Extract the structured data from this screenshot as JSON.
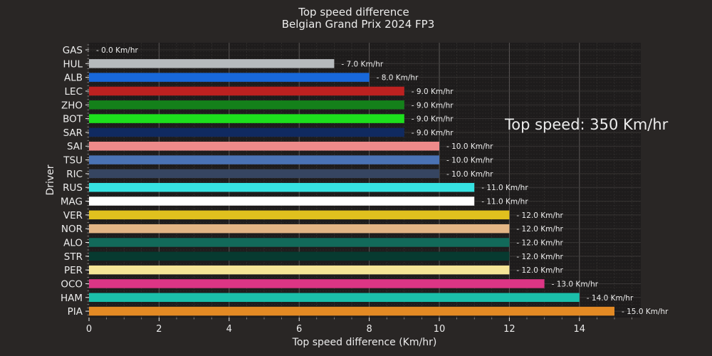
{
  "chart_data": {
    "type": "bar",
    "orientation": "horizontal",
    "title": "Top speed difference",
    "subtitle": "Belgian Grand Prix 2024 FP3",
    "xlabel": "Top speed difference (Km/hr)",
    "ylabel": "Driver",
    "xlim": [
      0,
      15.6
    ],
    "xticks": [
      0,
      2,
      4,
      6,
      8,
      10,
      12,
      14
    ],
    "grid": true,
    "annotation": "Top speed: 350 Km/hr",
    "value_label_format": "- {v} Km/hr",
    "categories": [
      "GAS",
      "HUL",
      "ALB",
      "LEC",
      "ZHO",
      "BOT",
      "SAR",
      "SAI",
      "TSU",
      "RIC",
      "RUS",
      "MAG",
      "VER",
      "NOR",
      "ALO",
      "STR",
      "PER",
      "OCO",
      "HAM",
      "PIA"
    ],
    "values": [
      0.0,
      7.0,
      8.0,
      9.0,
      9.0,
      9.0,
      9.0,
      10.0,
      10.0,
      10.0,
      11.0,
      11.0,
      12.0,
      12.0,
      12.0,
      12.0,
      12.0,
      13.0,
      14.0,
      15.0
    ],
    "colors": [
      "#2293d1",
      "#b6babd",
      "#1868db",
      "#bd2120",
      "#14801a",
      "#1de01d",
      "#102a60",
      "#ee8a8a",
      "#4a72b4",
      "#364561",
      "#36e2e2",
      "#ffffff",
      "#e0c01e",
      "#e3b585",
      "#126a5a",
      "#073a30",
      "#f5e597",
      "#dc3585",
      "#1bbfaa",
      "#e38a24"
    ]
  }
}
